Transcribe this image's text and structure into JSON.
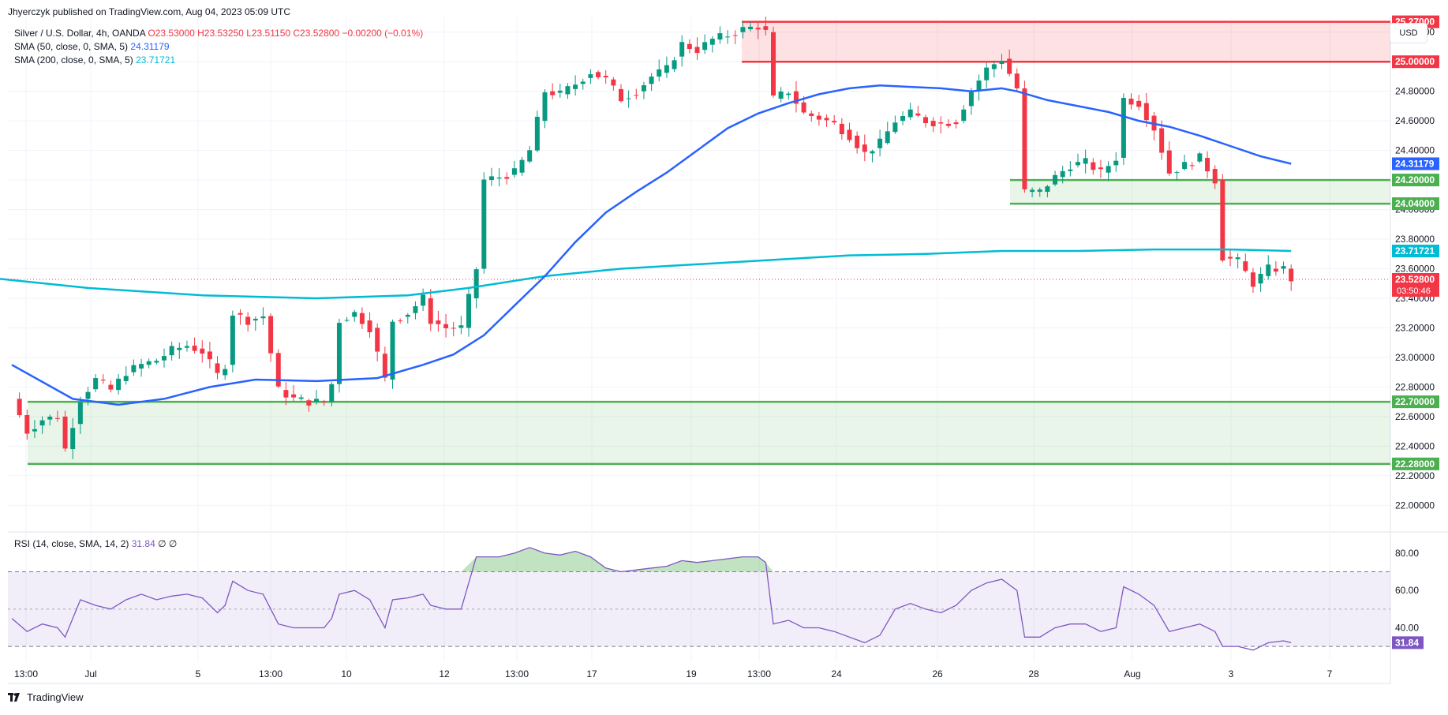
{
  "header": {
    "published": "Jhyerczyk published on TradingView.com, Aug 04, 2023 05:09 UTC"
  },
  "legend": {
    "symbol": "Silver / U.S. Dollar, 4h, OANDA",
    "open": "O23.53000",
    "high": "H23.53250",
    "low": "L23.51150",
    "close": "C23.52800",
    "change": "−0.00200 (−0.01%)",
    "sma50_label": "SMA (50, close, 0, SMA, 5)",
    "sma50_value": "24.31179",
    "sma200_label": "SMA (200, close, 0, SMA, 5)",
    "sma200_value": "23.71721",
    "rsi_label": "RSI (14, close, SMA, 14, 2)",
    "rsi_value": "31.84",
    "rsi_extra": "∅ ∅"
  },
  "currency_button": "USD",
  "footer": {
    "brand": "TradingView"
  },
  "colors": {
    "up": "#089981",
    "down": "#f23645",
    "sma50": "#2962ff",
    "sma200": "#00bcd4",
    "rsi": "#7e57c2",
    "support": "#4caf50",
    "resistance": "#f23645"
  },
  "chart_data": {
    "type": "candlestick",
    "price_axis": {
      "range": [
        21.82,
        25.3
      ],
      "ticks": [
        "22.00000",
        "22.20000",
        "22.40000",
        "22.60000",
        "22.80000",
        "23.00000",
        "23.20000",
        "23.40000",
        "23.60000",
        "23.80000",
        "24.00000",
        "24.20000",
        "24.40000",
        "24.60000",
        "24.80000",
        "25.00000",
        "25.20000"
      ]
    },
    "time_axis": {
      "ticks": [
        "13:00",
        "Jul",
        "5",
        "13:00",
        "10",
        "12",
        "13:00",
        "17",
        "19",
        "13:00",
        "24",
        "26",
        "28",
        "Aug",
        "3",
        "7"
      ]
    },
    "zones": [
      {
        "kind": "resistance",
        "top": 25.27,
        "bottom": 25.0,
        "top_label": "25.27000",
        "bottom_label": "25.00000"
      },
      {
        "kind": "support",
        "top": 24.2,
        "bottom": 24.04,
        "top_label": "24.20000",
        "bottom_label": "24.04000"
      },
      {
        "kind": "support",
        "top": 22.7,
        "bottom": 22.28,
        "top_label": "22.70000",
        "bottom_label": "22.28000"
      }
    ],
    "last_price": {
      "value": 23.528,
      "label": "23.52800",
      "countdown": "03:50:46"
    },
    "close_path": [
      [
        0,
        22.72
      ],
      [
        2,
        22.5
      ],
      [
        4,
        22.58
      ],
      [
        6,
        22.6
      ],
      [
        7,
        22.38
      ],
      [
        9,
        22.72
      ],
      [
        11,
        22.85
      ],
      [
        13,
        22.78
      ],
      [
        15,
        22.9
      ],
      [
        17,
        22.95
      ],
      [
        19,
        22.98
      ],
      [
        21,
        23.05
      ],
      [
        23,
        23.08
      ],
      [
        25,
        23.04
      ],
      [
        27,
        22.88
      ],
      [
        28,
        22.95
      ],
      [
        29,
        23.3
      ],
      [
        31,
        23.25
      ],
      [
        33,
        23.28
      ],
      [
        35,
        22.78
      ],
      [
        37,
        22.72
      ],
      [
        39,
        22.7
      ],
      [
        41,
        22.7
      ],
      [
        42,
        22.82
      ],
      [
        43,
        23.25
      ],
      [
        45,
        23.3
      ],
      [
        47,
        23.2
      ],
      [
        49,
        22.85
      ],
      [
        50,
        23.25
      ],
      [
        52,
        23.3
      ],
      [
        54,
        23.4
      ],
      [
        55,
        23.25
      ],
      [
        57,
        23.2
      ],
      [
        59,
        23.2
      ],
      [
        61,
        23.6
      ],
      [
        62,
        24.2
      ],
      [
        64,
        24.22
      ],
      [
        66,
        24.25
      ],
      [
        68,
        24.4
      ],
      [
        70,
        24.8
      ],
      [
        72,
        24.78
      ],
      [
        74,
        24.85
      ],
      [
        76,
        24.93
      ],
      [
        78,
        24.88
      ],
      [
        80,
        24.75
      ],
      [
        82,
        24.8
      ],
      [
        84,
        24.9
      ],
      [
        86,
        24.95
      ],
      [
        88,
        25.12
      ],
      [
        90,
        25.08
      ],
      [
        92,
        25.15
      ],
      [
        94,
        25.18
      ],
      [
        96,
        25.22
      ],
      [
        98,
        25.24
      ],
      [
        99,
        25.2
      ],
      [
        100,
        24.75
      ],
      [
        102,
        24.8
      ],
      [
        104,
        24.65
      ],
      [
        106,
        24.62
      ],
      [
        108,
        24.58
      ],
      [
        110,
        24.5
      ],
      [
        112,
        24.38
      ],
      [
        114,
        24.45
      ],
      [
        116,
        24.6
      ],
      [
        118,
        24.65
      ],
      [
        120,
        24.6
      ],
      [
        122,
        24.58
      ],
      [
        124,
        24.6
      ],
      [
        126,
        24.8
      ],
      [
        128,
        24.95
      ],
      [
        130,
        25.02
      ],
      [
        132,
        24.82
      ],
      [
        133,
        24.12
      ],
      [
        135,
        24.12
      ],
      [
        137,
        24.22
      ],
      [
        139,
        24.3
      ],
      [
        141,
        24.32
      ],
      [
        143,
        24.25
      ],
      [
        145,
        24.35
      ],
      [
        146,
        24.75
      ],
      [
        148,
        24.72
      ],
      [
        150,
        24.55
      ],
      [
        152,
        24.25
      ],
      [
        154,
        24.3
      ],
      [
        156,
        24.35
      ],
      [
        158,
        24.2
      ],
      [
        159,
        23.68
      ],
      [
        161,
        23.65
      ],
      [
        163,
        23.5
      ],
      [
        165,
        23.6
      ],
      [
        167,
        23.6
      ],
      [
        168,
        23.53
      ]
    ],
    "sma50_path": [
      [
        0,
        22.95
      ],
      [
        8,
        22.72
      ],
      [
        14,
        22.68
      ],
      [
        20,
        22.72
      ],
      [
        26,
        22.8
      ],
      [
        32,
        22.85
      ],
      [
        40,
        22.84
      ],
      [
        48,
        22.86
      ],
      [
        54,
        22.95
      ],
      [
        58,
        23.02
      ],
      [
        62,
        23.15
      ],
      [
        66,
        23.35
      ],
      [
        70,
        23.55
      ],
      [
        74,
        23.78
      ],
      [
        78,
        23.98
      ],
      [
        82,
        24.12
      ],
      [
        86,
        24.25
      ],
      [
        90,
        24.4
      ],
      [
        94,
        24.55
      ],
      [
        98,
        24.65
      ],
      [
        102,
        24.72
      ],
      [
        106,
        24.78
      ],
      [
        110,
        24.82
      ],
      [
        114,
        24.84
      ],
      [
        118,
        24.83
      ],
      [
        122,
        24.82
      ],
      [
        126,
        24.8
      ],
      [
        130,
        24.82
      ],
      [
        132,
        24.8
      ],
      [
        136,
        24.74
      ],
      [
        140,
        24.7
      ],
      [
        144,
        24.66
      ],
      [
        148,
        24.6
      ],
      [
        152,
        24.56
      ],
      [
        156,
        24.5
      ],
      [
        160,
        24.43
      ],
      [
        164,
        24.36
      ],
      [
        168,
        24.31
      ]
    ],
    "sma200_path": [
      [
        -5,
        23.55
      ],
      [
        10,
        23.47
      ],
      [
        25,
        23.42
      ],
      [
        40,
        23.4
      ],
      [
        52,
        23.42
      ],
      [
        60,
        23.47
      ],
      [
        70,
        23.55
      ],
      [
        80,
        23.6
      ],
      [
        90,
        23.63
      ],
      [
        100,
        23.66
      ],
      [
        110,
        23.69
      ],
      [
        120,
        23.7
      ],
      [
        130,
        23.72
      ],
      [
        140,
        23.72
      ],
      [
        150,
        23.73
      ],
      [
        160,
        23.73
      ],
      [
        168,
        23.72
      ]
    ],
    "rsi": {
      "axis_range": [
        22,
        88
      ],
      "ticks": [
        "80.00",
        "60.00",
        "40.00"
      ],
      "upper": 70,
      "middle": 50,
      "lower": 30,
      "last_label": "31.84",
      "path": [
        [
          0,
          45
        ],
        [
          2,
          38
        ],
        [
          4,
          42
        ],
        [
          6,
          40
        ],
        [
          7,
          35
        ],
        [
          9,
          55
        ],
        [
          11,
          52
        ],
        [
          13,
          50
        ],
        [
          15,
          55
        ],
        [
          17,
          58
        ],
        [
          19,
          55
        ],
        [
          21,
          57
        ],
        [
          23,
          58
        ],
        [
          25,
          56
        ],
        [
          27,
          48
        ],
        [
          28,
          52
        ],
        [
          29,
          65
        ],
        [
          31,
          60
        ],
        [
          33,
          58
        ],
        [
          35,
          42
        ],
        [
          37,
          40
        ],
        [
          39,
          40
        ],
        [
          41,
          40
        ],
        [
          42,
          45
        ],
        [
          43,
          58
        ],
        [
          45,
          60
        ],
        [
          47,
          55
        ],
        [
          49,
          40
        ],
        [
          50,
          55
        ],
        [
          52,
          56
        ],
        [
          54,
          58
        ],
        [
          55,
          52
        ],
        [
          57,
          50
        ],
        [
          59,
          50
        ],
        [
          61,
          78
        ],
        [
          62,
          78
        ],
        [
          64,
          78
        ],
        [
          66,
          80
        ],
        [
          68,
          83
        ],
        [
          70,
          80
        ],
        [
          72,
          79
        ],
        [
          74,
          81
        ],
        [
          76,
          78
        ],
        [
          78,
          72
        ],
        [
          80,
          70
        ],
        [
          82,
          71
        ],
        [
          84,
          72
        ],
        [
          86,
          73
        ],
        [
          88,
          76
        ],
        [
          90,
          75
        ],
        [
          92,
          76
        ],
        [
          94,
          77
        ],
        [
          96,
          78
        ],
        [
          98,
          78
        ],
        [
          99,
          75
        ],
        [
          100,
          42
        ],
        [
          102,
          44
        ],
        [
          104,
          40
        ],
        [
          106,
          40
        ],
        [
          108,
          38
        ],
        [
          110,
          35
        ],
        [
          112,
          32
        ],
        [
          114,
          36
        ],
        [
          116,
          50
        ],
        [
          118,
          53
        ],
        [
          120,
          50
        ],
        [
          122,
          48
        ],
        [
          124,
          52
        ],
        [
          126,
          60
        ],
        [
          128,
          64
        ],
        [
          130,
          66
        ],
        [
          132,
          60
        ],
        [
          133,
          35
        ],
        [
          135,
          35
        ],
        [
          137,
          40
        ],
        [
          139,
          42
        ],
        [
          141,
          42
        ],
        [
          143,
          38
        ],
        [
          145,
          40
        ],
        [
          146,
          62
        ],
        [
          148,
          58
        ],
        [
          150,
          52
        ],
        [
          152,
          38
        ],
        [
          154,
          40
        ],
        [
          156,
          42
        ],
        [
          158,
          38
        ],
        [
          159,
          30
        ],
        [
          161,
          30
        ],
        [
          163,
          28
        ],
        [
          165,
          32
        ],
        [
          167,
          33
        ],
        [
          168,
          32
        ]
      ]
    }
  }
}
